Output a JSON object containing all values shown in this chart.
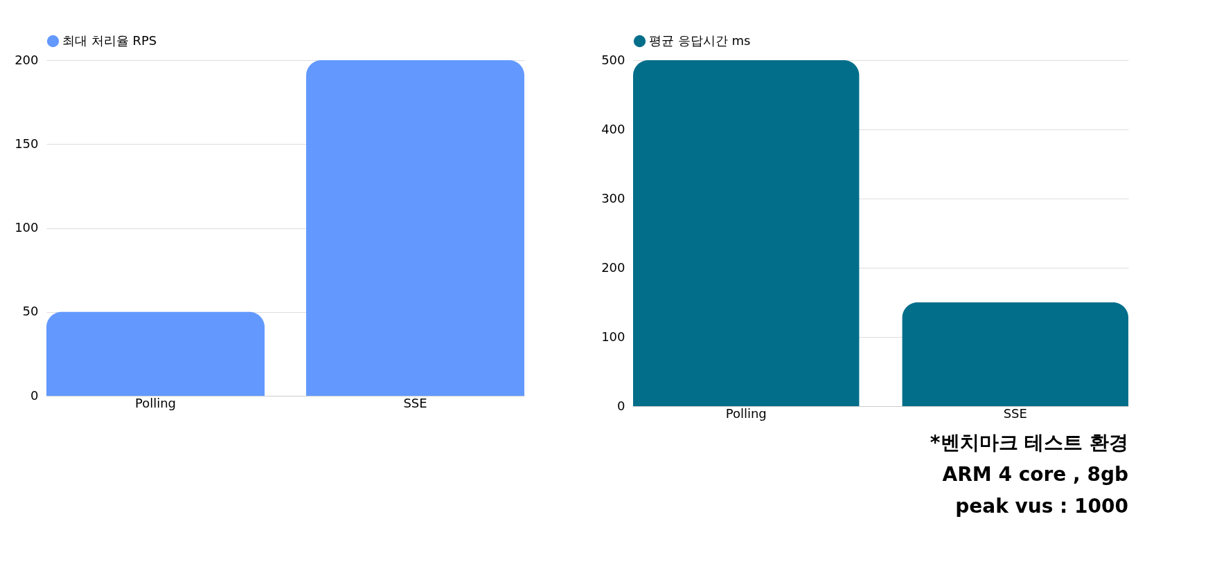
{
  "chart_data": [
    {
      "type": "bar",
      "categories": [
        "Polling",
        "SSE"
      ],
      "series": [
        {
          "name": "최대 처리율 RPS",
          "color": "#6399ff",
          "values": [
            50,
            200
          ]
        }
      ],
      "ylim": [
        0,
        200
      ],
      "yticks": [
        0,
        50,
        100,
        150,
        200
      ],
      "grid": "y",
      "legend": "top"
    },
    {
      "type": "bar",
      "categories": [
        "Polling",
        "SSE"
      ],
      "series": [
        {
          "name": "평균 응답시간 ms",
          "color": "#026e8a",
          "values": [
            500,
            150
          ]
        }
      ],
      "ylim": [
        0,
        500
      ],
      "yticks": [
        0,
        100,
        200,
        300,
        400,
        500
      ],
      "grid": "y",
      "legend": "top",
      "annotations": [
        "*벤치마크 테스트 환경",
        "ARM 4 core , 8gb",
        "peak vus : 1000"
      ]
    }
  ]
}
